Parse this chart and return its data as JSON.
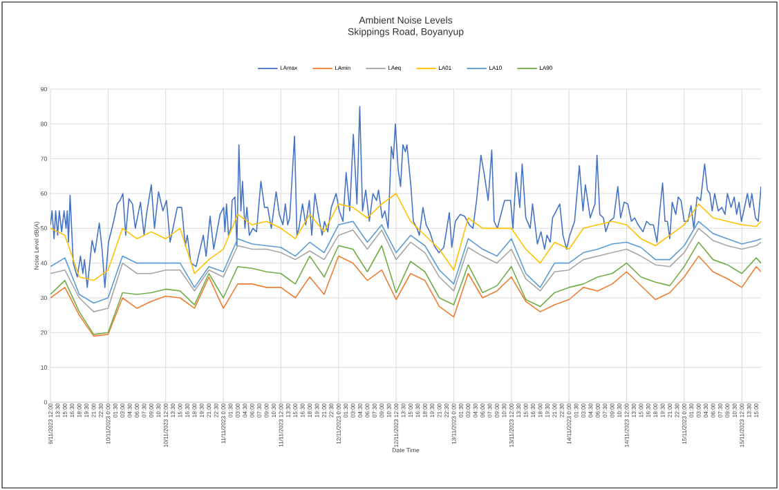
{
  "chart_data": {
    "type": "line",
    "title": "Ambient Noise Levels",
    "subtitle": "Skippings Road, Boyanyup",
    "xlabel": "Date Time",
    "ylabel": "Noise Level dB(A)",
    "xlim": [
      "2023-11-09T12:00",
      "2023-11-15T16:00"
    ],
    "ylim": [
      0,
      90
    ],
    "yticks": [
      0,
      10,
      20,
      30,
      40,
      50,
      60,
      70,
      80,
      90
    ],
    "grid": true,
    "legend": "top",
    "xticks": [
      {
        "value": "2023-11-09T12:00",
        "label": "9/11/2023 12:00"
      },
      {
        "value": "2023-11-09T13:30",
        "label": "13:30"
      },
      {
        "value": "2023-11-09T15:00",
        "label": "15:00"
      },
      {
        "value": "2023-11-09T16:30",
        "label": "16:30"
      },
      {
        "value": "2023-11-09T18:00",
        "label": "18:00"
      },
      {
        "value": "2023-11-09T19:30",
        "label": "19:30"
      },
      {
        "value": "2023-11-09T21:00",
        "label": "21:00"
      },
      {
        "value": "2023-11-09T22:30",
        "label": "22:30"
      },
      {
        "value": "2023-11-10T00:00",
        "label": "10/11/2023 0:00"
      },
      {
        "value": "2023-11-10T01:30",
        "label": "01:30"
      },
      {
        "value": "2023-11-10T03:00",
        "label": "03:00"
      },
      {
        "value": "2023-11-10T04:30",
        "label": "04:30"
      },
      {
        "value": "2023-11-10T06:00",
        "label": "06:00"
      },
      {
        "value": "2023-11-10T07:30",
        "label": "07:30"
      },
      {
        "value": "2023-11-10T09:00",
        "label": "09:00"
      },
      {
        "value": "2023-11-10T10:30",
        "label": "10:30"
      },
      {
        "value": "2023-11-10T12:00",
        "label": "10/11/2023 12:00"
      },
      {
        "value": "2023-11-10T13:30",
        "label": "13:30"
      },
      {
        "value": "2023-11-10T15:00",
        "label": "15:00"
      },
      {
        "value": "2023-11-10T16:30",
        "label": "16:30"
      },
      {
        "value": "2023-11-10T18:00",
        "label": "18:00"
      },
      {
        "value": "2023-11-10T19:30",
        "label": "19:30"
      },
      {
        "value": "2023-11-10T21:00",
        "label": "21:00"
      },
      {
        "value": "2023-11-10T22:30",
        "label": "22:30"
      },
      {
        "value": "2023-11-11T00:00",
        "label": "11/11/2023 0:00"
      },
      {
        "value": "2023-11-11T01:30",
        "label": "01:30"
      },
      {
        "value": "2023-11-11T03:00",
        "label": "03:00"
      },
      {
        "value": "2023-11-11T04:30",
        "label": "04:30"
      },
      {
        "value": "2023-11-11T06:00",
        "label": "06:00"
      },
      {
        "value": "2023-11-11T07:30",
        "label": "07:30"
      },
      {
        "value": "2023-11-11T09:00",
        "label": "09:00"
      },
      {
        "value": "2023-11-11T10:30",
        "label": "10:30"
      },
      {
        "value": "2023-11-11T12:00",
        "label": "11/11/2023 12:00"
      },
      {
        "value": "2023-11-11T13:30",
        "label": "13:30"
      },
      {
        "value": "2023-11-11T15:00",
        "label": "15:00"
      },
      {
        "value": "2023-11-11T16:30",
        "label": "16:30"
      },
      {
        "value": "2023-11-11T18:00",
        "label": "18:00"
      },
      {
        "value": "2023-11-11T19:30",
        "label": "19:30"
      },
      {
        "value": "2023-11-11T21:00",
        "label": "21:00"
      },
      {
        "value": "2023-11-11T22:30",
        "label": "22:30"
      },
      {
        "value": "2023-11-12T00:00",
        "label": "12/11/2023 0:00"
      },
      {
        "value": "2023-11-12T01:30",
        "label": "01:30"
      },
      {
        "value": "2023-11-12T03:00",
        "label": "03:00"
      },
      {
        "value": "2023-11-12T04:30",
        "label": "04:30"
      },
      {
        "value": "2023-11-12T06:00",
        "label": "06:00"
      },
      {
        "value": "2023-11-12T07:30",
        "label": "07:30"
      },
      {
        "value": "2023-11-12T09:00",
        "label": "09:00"
      },
      {
        "value": "2023-11-12T10:30",
        "label": "10:30"
      },
      {
        "value": "2023-11-12T12:00",
        "label": "12/11/2023 12:00"
      },
      {
        "value": "2023-11-12T13:30",
        "label": "13:30"
      },
      {
        "value": "2023-11-12T15:00",
        "label": "15:00"
      },
      {
        "value": "2023-11-12T16:30",
        "label": "16:30"
      },
      {
        "value": "2023-11-12T18:00",
        "label": "18:00"
      },
      {
        "value": "2023-11-12T19:30",
        "label": "19:30"
      },
      {
        "value": "2023-11-12T21:00",
        "label": "21:00"
      },
      {
        "value": "2023-11-12T22:30",
        "label": "22:30"
      },
      {
        "value": "2023-11-13T00:00",
        "label": "13/11/2023 0:00"
      },
      {
        "value": "2023-11-13T01:30",
        "label": "01:30"
      },
      {
        "value": "2023-11-13T03:00",
        "label": "03:00"
      },
      {
        "value": "2023-11-13T04:30",
        "label": "04:30"
      },
      {
        "value": "2023-11-13T06:00",
        "label": "06:00"
      },
      {
        "value": "2023-11-13T07:30",
        "label": "07:30"
      },
      {
        "value": "2023-11-13T09:00",
        "label": "09:00"
      },
      {
        "value": "2023-11-13T10:30",
        "label": "10:30"
      },
      {
        "value": "2023-11-13T12:00",
        "label": "13/11/2023 12:00"
      },
      {
        "value": "2023-11-13T13:30",
        "label": "13:30"
      },
      {
        "value": "2023-11-13T15:00",
        "label": "15:00"
      },
      {
        "value": "2023-11-13T16:30",
        "label": "16:30"
      },
      {
        "value": "2023-11-13T18:00",
        "label": "18:00"
      },
      {
        "value": "2023-11-13T19:30",
        "label": "19:30"
      },
      {
        "value": "2023-11-13T21:00",
        "label": "21:00"
      },
      {
        "value": "2023-11-13T22:30",
        "label": "22:30"
      },
      {
        "value": "2023-11-14T00:00",
        "label": "14/11/2023 0:00"
      },
      {
        "value": "2023-11-14T01:30",
        "label": "01:30"
      },
      {
        "value": "2023-11-14T03:00",
        "label": "03:00"
      },
      {
        "value": "2023-11-14T04:30",
        "label": "04:30"
      },
      {
        "value": "2023-11-14T06:00",
        "label": "06:00"
      },
      {
        "value": "2023-11-14T07:30",
        "label": "07:30"
      },
      {
        "value": "2023-11-14T09:00",
        "label": "09:00"
      },
      {
        "value": "2023-11-14T10:30",
        "label": "10:30"
      },
      {
        "value": "2023-11-14T12:00",
        "label": "14/11/2023 12:00"
      },
      {
        "value": "2023-11-14T13:30",
        "label": "13:30"
      },
      {
        "value": "2023-11-14T15:00",
        "label": "15:00"
      },
      {
        "value": "2023-11-14T16:30",
        "label": "16:30"
      },
      {
        "value": "2023-11-14T18:00",
        "label": "18:00"
      },
      {
        "value": "2023-11-14T19:30",
        "label": "19:30"
      },
      {
        "value": "2023-11-14T21:00",
        "label": "21:00"
      },
      {
        "value": "2023-11-14T22:30",
        "label": "22:30"
      },
      {
        "value": "2023-11-15T00:00",
        "label": "15/11/2023 0:00"
      },
      {
        "value": "2023-11-15T01:30",
        "label": "01:30"
      },
      {
        "value": "2023-11-15T03:00",
        "label": "03:00"
      },
      {
        "value": "2023-11-15T04:30",
        "label": "04:30"
      },
      {
        "value": "2023-11-15T06:00",
        "label": "06:00"
      },
      {
        "value": "2023-11-15T07:30",
        "label": "07:30"
      },
      {
        "value": "2023-11-15T09:00",
        "label": "09:00"
      },
      {
        "value": "2023-11-15T10:30",
        "label": "10:30"
      },
      {
        "value": "2023-11-15T12:00",
        "label": "15/11/2023 12:00"
      },
      {
        "value": "2023-11-15T13:30",
        "label": "13:30"
      },
      {
        "value": "2023-11-15T15:00",
        "label": "15:00"
      }
    ],
    "x": [
      "2023-11-09T12:00",
      "2023-11-09T15:00",
      "2023-11-09T18:00",
      "2023-11-09T21:00",
      "2023-11-10T00:00",
      "2023-11-10T03:00",
      "2023-11-10T06:00",
      "2023-11-10T09:00",
      "2023-11-10T12:00",
      "2023-11-10T15:00",
      "2023-11-10T18:00",
      "2023-11-10T21:00",
      "2023-11-11T00:00",
      "2023-11-11T03:00",
      "2023-11-11T06:00",
      "2023-11-11T09:00",
      "2023-11-11T12:00",
      "2023-11-11T15:00",
      "2023-11-11T18:00",
      "2023-11-11T21:00",
      "2023-11-12T00:00",
      "2023-11-12T03:00",
      "2023-11-12T06:00",
      "2023-11-12T09:00",
      "2023-11-12T12:00",
      "2023-11-12T15:00",
      "2023-11-12T18:00",
      "2023-11-12T21:00",
      "2023-11-13T00:00",
      "2023-11-13T03:00",
      "2023-11-13T06:00",
      "2023-11-13T09:00",
      "2023-11-13T12:00",
      "2023-11-13T15:00",
      "2023-11-13T18:00",
      "2023-11-13T21:00",
      "2023-11-14T00:00",
      "2023-11-14T03:00",
      "2023-11-14T06:00",
      "2023-11-14T09:00",
      "2023-11-14T12:00",
      "2023-11-14T15:00",
      "2023-11-14T18:00",
      "2023-11-14T21:00",
      "2023-11-15T00:00",
      "2023-11-15T03:00",
      "2023-11-15T06:00",
      "2023-11-15T09:00",
      "2023-11-15T12:00",
      "2023-11-15T15:00",
      "2023-11-15T16:00"
    ],
    "series": [
      {
        "name": "LAmax",
        "color": "#4472c4",
        "x": [
          "2023-11-09T12:00",
          "2023-11-09T12:20",
          "2023-11-09T12:45",
          "2023-11-09T13:05",
          "2023-11-09T13:30",
          "2023-11-09T13:50",
          "2023-11-09T14:20",
          "2023-11-09T14:50",
          "2023-11-09T15:15",
          "2023-11-09T15:30",
          "2023-11-09T15:45",
          "2023-11-09T16:05",
          "2023-11-09T16:45",
          "2023-11-09T17:35",
          "2023-11-09T18:15",
          "2023-11-09T18:45",
          "2023-11-09T19:05",
          "2023-11-09T19:40",
          "2023-11-09T20:40",
          "2023-11-09T21:15",
          "2023-11-09T22:10",
          "2023-11-09T22:45",
          "2023-11-09T23:20",
          "2023-11-10T00:05",
          "2023-11-10T01:10",
          "2023-11-10T01:55",
          "2023-11-10T02:30",
          "2023-11-10T03:05",
          "2023-11-10T03:40",
          "2023-11-10T04:20",
          "2023-11-10T05:05",
          "2023-11-10T05:40",
          "2023-11-10T06:45",
          "2023-11-10T07:30",
          "2023-11-10T08:00",
          "2023-11-10T09:00",
          "2023-11-10T09:40",
          "2023-11-10T10:30",
          "2023-11-10T11:25",
          "2023-11-10T12:10",
          "2023-11-10T12:55",
          "2023-11-10T14:25",
          "2023-11-10T15:20",
          "2023-11-10T16:05",
          "2023-11-10T16:30",
          "2023-11-10T17:15",
          "2023-11-10T18:20",
          "2023-11-10T19:50",
          "2023-11-10T20:25",
          "2023-11-10T21:15",
          "2023-11-10T22:00",
          "2023-11-10T23:20",
          "2023-11-11T00:05",
          "2023-11-11T00:20",
          "2023-11-11T00:40",
          "2023-11-11T01:05",
          "2023-11-11T01:35",
          "2023-11-11T01:50",
          "2023-11-11T02:25",
          "2023-11-11T02:50",
          "2023-11-11T03:15",
          "2023-11-11T03:40",
          "2023-11-11T04:00",
          "2023-11-11T04:30",
          "2023-11-11T04:55",
          "2023-11-11T05:25",
          "2023-11-11T06:10",
          "2023-11-11T06:55",
          "2023-11-11T07:50",
          "2023-11-11T08:35",
          "2023-11-11T09:15",
          "2023-11-11T10:00",
          "2023-11-11T11:00",
          "2023-11-11T11:40",
          "2023-11-11T12:25",
          "2023-11-11T12:55",
          "2023-11-11T13:25",
          "2023-11-11T13:50",
          "2023-11-11T14:50",
          "2023-11-11T15:20",
          "2023-11-11T15:45",
          "2023-11-11T16:30",
          "2023-11-11T17:10",
          "2023-11-11T17:55",
          "2023-11-11T18:25",
          "2023-11-11T19:05",
          "2023-11-11T19:55",
          "2023-11-11T20:35",
          "2023-11-11T21:05",
          "2023-11-11T21:45",
          "2023-11-11T22:30",
          "2023-11-11T23:30",
          "2023-11-12T00:10",
          "2023-11-12T00:55",
          "2023-11-12T01:35",
          "2023-11-12T02:20",
          "2023-11-12T03:05",
          "2023-11-12T03:50",
          "2023-11-12T04:25",
          "2023-11-12T05:00",
          "2023-11-12T05:40",
          "2023-11-12T06:25",
          "2023-11-12T07:10",
          "2023-11-12T07:55",
          "2023-11-12T08:20",
          "2023-11-12T09:05",
          "2023-11-12T09:40",
          "2023-11-12T10:20",
          "2023-11-12T11:00",
          "2023-11-12T11:25",
          "2023-11-12T11:50",
          "2023-11-12T12:25",
          "2023-11-12T12:55",
          "2023-11-12T13:25",
          "2023-11-12T13:55",
          "2023-11-12T14:15",
          "2023-11-12T15:05",
          "2023-11-12T15:35",
          "2023-11-12T16:20",
          "2023-11-12T16:50",
          "2023-11-12T17:35",
          "2023-11-12T18:15",
          "2023-11-12T19:00",
          "2023-11-12T19:55",
          "2023-11-12T20:55",
          "2023-11-12T21:55",
          "2023-11-12T23:05",
          "2023-11-12T23:35",
          "2023-11-13T00:20",
          "2023-11-13T01:20",
          "2023-11-13T02:15",
          "2023-11-13T03:15",
          "2023-11-13T04:00",
          "2023-11-13T04:45",
          "2023-11-13T05:40",
          "2023-11-13T06:25",
          "2023-11-13T07:10",
          "2023-11-13T07:55",
          "2023-11-13T08:25",
          "2023-11-13T09:05",
          "2023-11-13T10:35",
          "2023-11-13T11:50",
          "2023-11-13T12:20",
          "2023-11-13T13:00",
          "2023-11-13T13:45",
          "2023-11-13T14:15",
          "2023-11-13T15:00",
          "2023-11-13T15:55",
          "2023-11-13T16:25",
          "2023-11-13T17:25",
          "2023-11-13T18:10",
          "2023-11-13T18:55",
          "2023-11-13T19:25",
          "2023-11-13T20:05",
          "2023-11-13T20:35",
          "2023-11-13T22:05",
          "2023-11-13T22:45",
          "2023-11-13T23:30",
          "2023-11-14T00:10",
          "2023-11-14T01:10",
          "2023-11-14T02:10",
          "2023-11-14T02:55",
          "2023-11-14T03:25",
          "2023-11-14T04:25",
          "2023-11-14T05:25",
          "2023-11-14T05:50",
          "2023-11-14T06:25",
          "2023-11-14T07:10",
          "2023-11-14T07:40",
          "2023-11-14T08:25",
          "2023-11-14T09:20",
          "2023-11-14T10:10",
          "2023-11-14T10:45",
          "2023-11-14T11:30",
          "2023-11-14T12:15",
          "2023-11-14T13:00",
          "2023-11-14T13:40",
          "2023-11-14T14:25",
          "2023-11-14T15:25",
          "2023-11-14T16:10",
          "2023-11-14T16:55",
          "2023-11-14T17:35",
          "2023-11-14T18:20",
          "2023-11-14T18:50",
          "2023-11-14T19:30",
          "2023-11-14T20:00",
          "2023-11-14T20:30",
          "2023-11-14T21:00",
          "2023-11-14T21:30",
          "2023-11-14T22:15",
          "2023-11-14T22:45",
          "2023-11-14T23:20",
          "2023-11-15T00:00",
          "2023-11-15T00:45",
          "2023-11-15T01:25",
          "2023-11-15T02:00",
          "2023-11-15T02:40",
          "2023-11-15T03:25",
          "2023-11-15T04:15",
          "2023-11-15T04:50",
          "2023-11-15T05:20",
          "2023-11-15T05:50",
          "2023-11-15T06:20",
          "2023-11-15T07:05",
          "2023-11-15T07:50",
          "2023-11-15T08:30",
          "2023-11-15T09:00",
          "2023-11-15T09:45",
          "2023-11-15T10:25",
          "2023-11-15T10:55",
          "2023-11-15T11:25",
          "2023-11-15T11:55",
          "2023-11-15T12:15",
          "2023-11-15T13:10",
          "2023-11-15T13:40",
          "2023-11-15T14:05",
          "2023-11-15T14:50",
          "2023-11-15T15:25",
          "2023-11-15T16:00"
        ],
        "values": [
          51,
          55,
          47,
          55,
          48,
          55,
          49,
          55,
          50,
          55,
          46,
          59.5,
          40,
          36,
          42,
          37,
          41,
          33,
          46.5,
          43,
          51.5,
          44,
          33,
          46,
          52,
          57,
          58,
          60,
          48,
          58.5,
          57,
          50,
          57.5,
          48,
          54,
          62.5,
          50,
          60.5,
          55,
          58,
          46,
          56,
          56,
          45,
          48,
          40,
          39,
          48,
          42,
          53.5,
          44,
          54,
          56,
          49,
          57,
          48,
          50,
          58,
          59,
          45,
          74,
          55,
          63.5,
          50,
          56,
          48,
          50,
          49,
          63.5,
          56,
          56,
          50,
          60.5,
          54,
          51,
          57,
          51,
          53,
          76.5,
          48,
          50,
          57,
          51,
          58,
          48,
          60,
          53,
          48,
          52,
          49,
          56,
          60,
          55,
          52,
          66,
          55,
          77,
          57,
          85,
          55,
          61,
          52,
          60,
          58,
          61,
          53,
          55,
          50,
          73.5,
          70,
          80,
          67,
          62,
          74,
          72,
          74,
          62,
          52,
          50,
          48,
          56,
          51,
          49,
          45,
          43,
          44.5,
          54.5,
          44.5,
          52,
          54,
          53.5,
          51,
          50,
          58,
          71,
          65,
          58,
          72.5,
          52,
          50,
          58,
          58,
          50,
          66,
          56,
          68.5,
          53,
          50,
          57,
          45.5,
          49,
          44,
          48,
          46,
          53,
          57,
          48,
          44,
          48,
          52,
          68,
          55,
          62.5,
          53,
          57,
          71,
          54,
          53,
          49,
          52,
          53,
          62,
          53,
          57.5,
          57,
          52,
          53,
          51,
          49,
          52,
          51,
          51,
          46,
          54,
          63,
          52,
          52,
          47,
          57.5,
          54,
          59,
          58,
          52,
          52,
          56.5,
          50,
          59,
          58,
          68.5,
          61,
          60,
          55,
          60,
          55,
          56,
          54,
          60,
          56,
          59,
          54,
          57.5,
          52,
          54,
          60,
          56,
          60,
          53,
          52,
          62
        ]
      },
      {
        "name": "LAmin",
        "color": "#ed7d31",
        "values": [
          30,
          33,
          25,
          19,
          19.5,
          30,
          27,
          29,
          30.5,
          30,
          27,
          36,
          27,
          34,
          34,
          33,
          33,
          30,
          36,
          31,
          42,
          40,
          35,
          38,
          29.5,
          37,
          35,
          27.5,
          24.5,
          37,
          30,
          32,
          36,
          29,
          26,
          28,
          29.5,
          33,
          32,
          34,
          37.5,
          33.5,
          29.5,
          31.5,
          36,
          42,
          37.5,
          35.5,
          33,
          39,
          37.5
        ]
      },
      {
        "name": "LAeq",
        "color": "#a5a5a5",
        "values": [
          37,
          38,
          30,
          26,
          27,
          40,
          37,
          37,
          38,
          38,
          32,
          38,
          36,
          45,
          44,
          44,
          43,
          41,
          43.5,
          41,
          48,
          49.5,
          44,
          49.5,
          41,
          46,
          43,
          36,
          32,
          44.5,
          42,
          40,
          44,
          35.5,
          32,
          37.5,
          38,
          41,
          42,
          43,
          44,
          42,
          39.5,
          39,
          43,
          50,
          46.5,
          45,
          44,
          45,
          46
        ]
      },
      {
        "name": "LA01",
        "color": "#ffc000",
        "values": [
          50,
          48,
          36,
          35,
          38,
          50,
          47,
          49,
          47,
          50,
          37,
          41,
          44,
          54,
          51,
          52,
          50,
          47,
          54,
          49,
          57,
          56,
          53,
          57,
          60,
          52,
          48,
          44,
          38,
          53,
          50,
          50,
          50,
          44,
          40,
          46,
          44,
          50,
          51,
          52,
          51,
          47,
          45,
          48,
          51,
          57,
          53,
          52,
          51,
          50.5,
          52
        ]
      },
      {
        "name": "LA10",
        "color": "#5b9bd5",
        "values": [
          39,
          41.5,
          31,
          28.5,
          30,
          42,
          40,
          40,
          40,
          40,
          33,
          39,
          37.5,
          47,
          45.5,
          45,
          44.5,
          42,
          46,
          43,
          51,
          52,
          46,
          51,
          43,
          48,
          45,
          38,
          34,
          47,
          44,
          42,
          47,
          37,
          33,
          40,
          40,
          43,
          44,
          45.5,
          46,
          44.5,
          41,
          41,
          45,
          52,
          48.5,
          47,
          45.5,
          46.5,
          47
        ]
      },
      {
        "name": "LA90",
        "color": "#70ad47",
        "values": [
          31,
          35,
          26,
          19.5,
          20,
          31.5,
          31,
          31.5,
          32.5,
          32,
          28,
          37,
          30,
          39,
          38.5,
          37.5,
          37,
          34,
          42,
          36,
          45,
          44,
          37.5,
          45,
          31.5,
          40.5,
          37.5,
          30,
          28,
          39.5,
          31.5,
          33.5,
          39,
          29.5,
          27.5,
          31.5,
          33,
          34,
          36,
          37,
          40,
          36,
          34.5,
          33.5,
          39,
          46,
          41,
          39.5,
          37,
          41.5,
          40
        ]
      }
    ]
  }
}
